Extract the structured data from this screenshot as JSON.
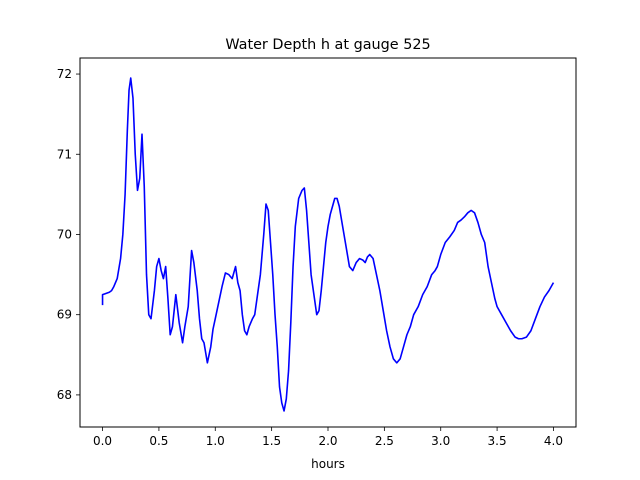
{
  "chart_data": {
    "type": "line",
    "title": "Water Depth h at gauge 525",
    "xlabel": "hours",
    "ylabel": "",
    "xlim": [
      -0.2,
      4.2
    ],
    "ylim": [
      67.6,
      72.2
    ],
    "xticks": [
      0.0,
      0.5,
      1.0,
      1.5,
      2.0,
      2.5,
      3.0,
      3.5,
      4.0
    ],
    "xtick_labels": [
      "0.0",
      "0.5",
      "1.0",
      "1.5",
      "2.0",
      "2.5",
      "3.0",
      "3.5",
      "4.0"
    ],
    "yticks": [
      68,
      69,
      70,
      71,
      72
    ],
    "ytick_labels": [
      "68",
      "69",
      "70",
      "71",
      "72"
    ],
    "grid": false,
    "series": [
      {
        "color": "#0000ff",
        "x": [
          0.0,
          0.0,
          0.02,
          0.06,
          0.08,
          0.1,
          0.13,
          0.16,
          0.18,
          0.2,
          0.22,
          0.235,
          0.25,
          0.27,
          0.29,
          0.31,
          0.33,
          0.35,
          0.37,
          0.39,
          0.41,
          0.43,
          0.46,
          0.48,
          0.5,
          0.52,
          0.54,
          0.56,
          0.58,
          0.6,
          0.62,
          0.65,
          0.68,
          0.71,
          0.73,
          0.76,
          0.79,
          0.81,
          0.84,
          0.86,
          0.88,
          0.9,
          0.93,
          0.96,
          0.98,
          1.0,
          1.03,
          1.06,
          1.09,
          1.12,
          1.15,
          1.18,
          1.2,
          1.22,
          1.24,
          1.26,
          1.28,
          1.3,
          1.33,
          1.35,
          1.37,
          1.4,
          1.43,
          1.45,
          1.47,
          1.49,
          1.51,
          1.53,
          1.55,
          1.57,
          1.59,
          1.61,
          1.63,
          1.65,
          1.67,
          1.69,
          1.71,
          1.74,
          1.77,
          1.79,
          1.81,
          1.83,
          1.85,
          1.88,
          1.9,
          1.92,
          1.94,
          1.96,
          1.98,
          2.0,
          2.02,
          2.04,
          2.06,
          2.08,
          2.1,
          2.13,
          2.16,
          2.19,
          2.22,
          2.25,
          2.28,
          2.31,
          2.33,
          2.35,
          2.37,
          2.4,
          2.43,
          2.46,
          2.49,
          2.52,
          2.55,
          2.58,
          2.61,
          2.64,
          2.67,
          2.7,
          2.73,
          2.76,
          2.8,
          2.84,
          2.88,
          2.92,
          2.95,
          2.97,
          3.0,
          3.04,
          3.08,
          3.12,
          3.15,
          3.18,
          3.21,
          3.24,
          3.27,
          3.3,
          3.33,
          3.36,
          3.39,
          3.42,
          3.45,
          3.48,
          3.5,
          3.54,
          3.58,
          3.62,
          3.66,
          3.69,
          3.72,
          3.76,
          3.8,
          3.84,
          3.88,
          3.92,
          3.96,
          4.0
        ],
        "y": [
          69.12,
          69.25,
          69.26,
          69.28,
          69.3,
          69.35,
          69.45,
          69.7,
          70.0,
          70.5,
          71.3,
          71.8,
          71.95,
          71.7,
          71.0,
          70.55,
          70.7,
          71.25,
          70.6,
          69.5,
          69.0,
          68.95,
          69.3,
          69.6,
          69.7,
          69.55,
          69.45,
          69.6,
          69.2,
          68.75,
          68.85,
          69.25,
          68.9,
          68.65,
          68.85,
          69.1,
          69.8,
          69.65,
          69.3,
          68.95,
          68.7,
          68.65,
          68.4,
          68.6,
          68.82,
          68.95,
          69.15,
          69.35,
          69.52,
          69.5,
          69.45,
          69.6,
          69.4,
          69.3,
          69.0,
          68.8,
          68.75,
          68.85,
          68.95,
          69.0,
          69.2,
          69.5,
          70.0,
          70.38,
          70.3,
          69.9,
          69.5,
          69.0,
          68.6,
          68.1,
          67.9,
          67.8,
          67.95,
          68.3,
          68.9,
          69.6,
          70.1,
          70.45,
          70.55,
          70.58,
          70.3,
          69.9,
          69.5,
          69.2,
          69.0,
          69.05,
          69.3,
          69.6,
          69.9,
          70.1,
          70.25,
          70.35,
          70.45,
          70.45,
          70.35,
          70.1,
          69.85,
          69.6,
          69.55,
          69.65,
          69.7,
          69.68,
          69.65,
          69.72,
          69.75,
          69.7,
          69.5,
          69.3,
          69.05,
          68.8,
          68.6,
          68.45,
          68.4,
          68.45,
          68.6,
          68.75,
          68.85,
          69.0,
          69.1,
          69.25,
          69.35,
          69.5,
          69.55,
          69.6,
          69.75,
          69.9,
          69.97,
          70.05,
          70.15,
          70.18,
          70.22,
          70.27,
          70.3,
          70.27,
          70.15,
          70.0,
          69.9,
          69.6,
          69.4,
          69.2,
          69.1,
          69.0,
          68.9,
          68.8,
          68.72,
          68.7,
          68.7,
          68.72,
          68.8,
          68.95,
          69.1,
          69.22,
          69.3,
          69.4
        ]
      }
    ]
  }
}
